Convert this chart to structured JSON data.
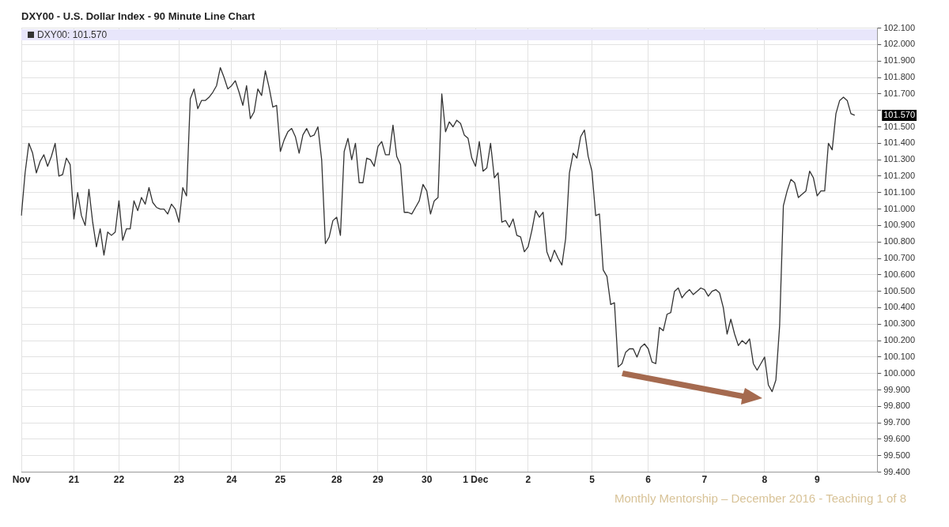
{
  "chart_data": {
    "type": "line",
    "title": "DXY00 - U.S. Dollar Index - 90 Minute Line Chart",
    "annotations": [
      "101.570",
      "Monthly Mentorship – December 2016 - Teaching 1 of 8"
    ],
    "categories": [
      "Nov",
      null,
      null,
      null,
      null,
      null,
      null,
      null,
      null,
      null,
      null,
      null,
      null,
      null,
      "21",
      null,
      null,
      null,
      null,
      null,
      null,
      null,
      null,
      null,
      null,
      null,
      "22",
      null,
      null,
      null,
      null,
      null,
      null,
      null,
      null,
      null,
      null,
      null,
      null,
      null,
      null,
      null,
      "23",
      null,
      null,
      null,
      null,
      null,
      null,
      null,
      null,
      null,
      null,
      null,
      null,
      null,
      "24",
      null,
      null,
      null,
      null,
      null,
      null,
      null,
      null,
      null,
      null,
      null,
      null,
      "25",
      null,
      null,
      null,
      null,
      null,
      null,
      null,
      null,
      null,
      null,
      null,
      null,
      null,
      null,
      "28",
      null,
      null,
      null,
      null,
      null,
      null,
      null,
      null,
      null,
      null,
      "29",
      null,
      null,
      null,
      null,
      null,
      null,
      null,
      null,
      null,
      null,
      null,
      null,
      "30",
      null,
      null,
      null,
      null,
      null,
      null,
      null,
      null,
      null,
      null,
      null,
      null,
      "1 Dec",
      null,
      null,
      null,
      null,
      null,
      null,
      null,
      null,
      null,
      null,
      null,
      null,
      null,
      "2",
      null,
      null,
      null,
      null,
      null,
      null,
      null,
      null,
      null,
      null,
      null,
      null,
      null,
      null,
      null,
      null,
      "5",
      null,
      null,
      null,
      null,
      null,
      null,
      null,
      null,
      null,
      null,
      null,
      null,
      null,
      null,
      "6",
      null,
      null,
      null,
      null,
      null,
      null,
      null,
      null,
      null,
      null,
      null,
      null,
      null,
      null,
      "7",
      null,
      null,
      null,
      null,
      null,
      null,
      null,
      null,
      null,
      null,
      null,
      null,
      null,
      null,
      null,
      "8",
      null,
      null,
      null,
      null,
      null,
      null,
      null,
      null,
      null,
      null,
      null,
      null,
      null,
      "9",
      null,
      null,
      null,
      null,
      null,
      null,
      null,
      null,
      null,
      null,
      null,
      null,
      null,
      null,
      null,
      null
    ],
    "series": [
      {
        "name": "DXY00: 101.570",
        "color": "#333333",
        "values": [
          100.96,
          101.22,
          101.4,
          101.34,
          101.22,
          101.29,
          101.33,
          101.26,
          101.32,
          101.4,
          101.2,
          101.21,
          101.31,
          101.27,
          100.94,
          101.1,
          100.96,
          100.9,
          101.12,
          100.92,
          100.77,
          100.88,
          100.72,
          100.86,
          100.84,
          100.86,
          101.05,
          100.81,
          100.88,
          100.88,
          101.05,
          100.99,
          101.07,
          101.03,
          101.13,
          101.04,
          101.01,
          101.0,
          101.0,
          100.97,
          101.03,
          101.0,
          100.92,
          101.13,
          101.08,
          101.67,
          101.73,
          101.61,
          101.66,
          101.66,
          101.68,
          101.71,
          101.75,
          101.86,
          101.8,
          101.73,
          101.75,
          101.78,
          101.71,
          101.63,
          101.75,
          101.55,
          101.59,
          101.73,
          101.69,
          101.84,
          101.74,
          101.62,
          101.63,
          101.35,
          101.42,
          101.47,
          101.49,
          101.44,
          101.34,
          101.45,
          101.49,
          101.44,
          101.45,
          101.5,
          101.3,
          100.79,
          100.83,
          100.93,
          100.95,
          100.84,
          101.35,
          101.43,
          101.3,
          101.4,
          101.16,
          101.16,
          101.31,
          101.3,
          101.26,
          101.38,
          101.41,
          101.33,
          101.33,
          101.51,
          101.32,
          101.27,
          100.98,
          100.98,
          100.97,
          101.01,
          101.05,
          101.15,
          101.11,
          100.97,
          101.05,
          101.07,
          101.7,
          101.47,
          101.53,
          101.5,
          101.54,
          101.52,
          101.45,
          101.43,
          101.31,
          101.26,
          101.41,
          101.23,
          101.25,
          101.4,
          101.19,
          101.22,
          100.92,
          100.93,
          100.89,
          100.94,
          100.84,
          100.83,
          100.74,
          100.77,
          100.87,
          100.99,
          100.95,
          100.98,
          100.74,
          100.68,
          100.75,
          100.7,
          100.66,
          100.82,
          101.22,
          101.34,
          101.31,
          101.44,
          101.48,
          101.32,
          101.23,
          100.96,
          100.97,
          100.63,
          100.59,
          100.42,
          100.43,
          100.04,
          100.06,
          100.13,
          100.15,
          100.15,
          100.1,
          100.16,
          100.18,
          100.15,
          100.07,
          100.06,
          100.28,
          100.26,
          100.36,
          100.37,
          100.5,
          100.52,
          100.46,
          100.49,
          100.51,
          100.48,
          100.5,
          100.52,
          100.51,
          100.47,
          100.5,
          100.51,
          100.49,
          100.4,
          100.24,
          100.33,
          100.24,
          100.17,
          100.2,
          100.18,
          100.21,
          100.06,
          100.02,
          100.06,
          100.1,
          99.93,
          99.89,
          99.96,
          100.29,
          101.02,
          101.11,
          101.18,
          101.16,
          101.07,
          101.09,
          101.11,
          101.23,
          101.19,
          101.08,
          101.11,
          101.11,
          101.4,
          101.36,
          101.58,
          101.66,
          101.68,
          101.66,
          101.58,
          101.57,
          null,
          null,
          null,
          null,
          null,
          null
        ]
      }
    ],
    "ylim": [
      99.4,
      102.1
    ],
    "yticks": [
      {
        "value": 99.4,
        "label": "99.400"
      },
      {
        "value": 99.5,
        "label": "99.500"
      },
      {
        "value": 99.6,
        "label": "99.600"
      },
      {
        "value": 99.7,
        "label": "99.700"
      },
      {
        "value": 99.8,
        "label": "99.800"
      },
      {
        "value": 99.9,
        "label": "99.900"
      },
      {
        "value": 100,
        "label": "100.000"
      },
      {
        "value": 100.1,
        "label": "100.100"
      },
      {
        "value": 100.2,
        "label": "100.200"
      },
      {
        "value": 100.3,
        "label": "100.300"
      },
      {
        "value": 100.4,
        "label": "100.400"
      },
      {
        "value": 100.5,
        "label": "100.500"
      },
      {
        "value": 100.6,
        "label": "100.600"
      },
      {
        "value": 100.7,
        "label": "100.700"
      },
      {
        "value": 100.8,
        "label": "100.800"
      },
      {
        "value": 100.9,
        "label": "100.900"
      },
      {
        "value": 101,
        "label": "101.000"
      },
      {
        "value": 101.1,
        "label": "101.100"
      },
      {
        "value": 101.2,
        "label": "101.200"
      },
      {
        "value": 101.3,
        "label": "101.300"
      },
      {
        "value": 101.4,
        "label": "101.400"
      },
      {
        "value": 101.5,
        "label": "101.500"
      },
      {
        "value": 101.6,
        "label": null
      },
      {
        "value": 101.7,
        "label": "101.700"
      },
      {
        "value": 101.8,
        "label": "101.800"
      },
      {
        "value": 101.9,
        "label": "101.900"
      },
      {
        "value": 102,
        "label": "102.000"
      },
      {
        "value": 102.1,
        "label": "102.100"
      }
    ],
    "grid": true,
    "legend": "top left",
    "marker": "none",
    "line_style": "solid"
  }
}
